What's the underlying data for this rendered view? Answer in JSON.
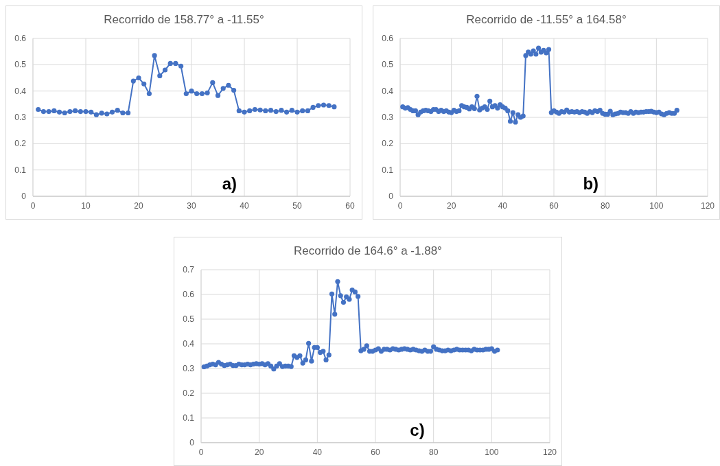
{
  "chart_data": [
    {
      "type": "line",
      "title": "Recorrido de 158.77° a -11.55°",
      "marker": "circle",
      "grid": true,
      "xlim": [
        0,
        60
      ],
      "xticks": [
        0,
        10,
        20,
        30,
        40,
        50,
        60
      ],
      "ylim": [
        0,
        0.6
      ],
      "yticks": [
        0,
        0.1,
        0.2,
        0.3,
        0.4,
        0.5,
        0.6
      ],
      "annotations": [
        "a)"
      ],
      "series": [
        {
          "color": "#4472c4",
          "x": [
            1,
            2,
            3,
            4,
            5,
            6,
            7,
            8,
            9,
            10,
            11,
            12,
            13,
            14,
            15,
            16,
            17,
            18,
            19,
            20,
            21,
            22,
            23,
            24,
            25,
            26,
            27,
            28,
            29,
            30,
            31,
            32,
            33,
            34,
            35,
            36,
            37,
            38,
            39,
            40,
            41,
            42,
            43,
            44,
            45,
            46,
            47,
            48,
            49,
            50,
            51,
            52,
            53,
            54,
            55,
            56,
            57
          ],
          "values": [
            0.33,
            0.322,
            0.322,
            0.325,
            0.32,
            0.317,
            0.322,
            0.325,
            0.322,
            0.322,
            0.32,
            0.31,
            0.316,
            0.313,
            0.32,
            0.327,
            0.317,
            0.317,
            0.438,
            0.45,
            0.427,
            0.39,
            0.535,
            0.458,
            0.48,
            0.505,
            0.505,
            0.495,
            0.39,
            0.4,
            0.39,
            0.39,
            0.393,
            0.432,
            0.383,
            0.41,
            0.422,
            0.403,
            0.325,
            0.32,
            0.325,
            0.33,
            0.328,
            0.325,
            0.327,
            0.322,
            0.327,
            0.32,
            0.327,
            0.32,
            0.325,
            0.325,
            0.338,
            0.345,
            0.347,
            0.345,
            0.34
          ]
        }
      ]
    },
    {
      "type": "line",
      "title": "Recorrido de -11.55° a 164.58°",
      "marker": "circle",
      "grid": true,
      "xlim": [
        0,
        120
      ],
      "xticks": [
        0,
        20,
        40,
        60,
        80,
        100,
        120
      ],
      "ylim": [
        0,
        0.6
      ],
      "yticks": [
        0,
        0.1,
        0.2,
        0.3,
        0.4,
        0.5,
        0.6
      ],
      "annotations": [
        "b)"
      ],
      "series": [
        {
          "color": "#4472c4",
          "x": [
            1,
            2,
            3,
            4,
            5,
            6,
            7,
            8,
            9,
            10,
            11,
            12,
            13,
            14,
            15,
            16,
            17,
            18,
            19,
            20,
            21,
            22,
            23,
            24,
            25,
            26,
            27,
            28,
            29,
            30,
            31,
            32,
            33,
            34,
            35,
            36,
            37,
            38,
            39,
            40,
            41,
            42,
            43,
            44,
            45,
            46,
            47,
            48,
            49,
            50,
            51,
            52,
            53,
            54,
            55,
            56,
            57,
            58,
            59,
            60,
            61,
            62,
            63,
            64,
            65,
            66,
            67,
            68,
            69,
            70,
            71,
            72,
            73,
            74,
            75,
            76,
            77,
            78,
            79,
            80,
            81,
            82,
            83,
            84,
            85,
            86,
            87,
            88,
            89,
            90,
            91,
            92,
            93,
            94,
            95,
            96,
            97,
            98,
            99,
            100,
            101,
            102,
            103,
            104,
            105,
            106,
            107,
            108
          ],
          "values": [
            0.34,
            0.335,
            0.337,
            0.33,
            0.325,
            0.325,
            0.31,
            0.32,
            0.325,
            0.327,
            0.325,
            0.322,
            0.33,
            0.33,
            0.322,
            0.327,
            0.322,
            0.325,
            0.32,
            0.318,
            0.327,
            0.322,
            0.325,
            0.345,
            0.34,
            0.338,
            0.332,
            0.34,
            0.333,
            0.38,
            0.328,
            0.335,
            0.34,
            0.33,
            0.362,
            0.34,
            0.345,
            0.335,
            0.348,
            0.34,
            0.335,
            0.325,
            0.285,
            0.318,
            0.282,
            0.31,
            0.3,
            0.305,
            0.535,
            0.548,
            0.54,
            0.553,
            0.54,
            0.563,
            0.548,
            0.555,
            0.545,
            0.558,
            0.318,
            0.325,
            0.32,
            0.315,
            0.322,
            0.32,
            0.328,
            0.32,
            0.322,
            0.32,
            0.322,
            0.318,
            0.322,
            0.32,
            0.315,
            0.322,
            0.318,
            0.325,
            0.322,
            0.327,
            0.315,
            0.312,
            0.312,
            0.323,
            0.31,
            0.313,
            0.315,
            0.32,
            0.318,
            0.318,
            0.315,
            0.322,
            0.315,
            0.32,
            0.318,
            0.32,
            0.32,
            0.322,
            0.322,
            0.323,
            0.32,
            0.318,
            0.32,
            0.313,
            0.31,
            0.315,
            0.318,
            0.315,
            0.315,
            0.327
          ]
        }
      ]
    },
    {
      "type": "line",
      "title": "Recorrido de 164.6° a -1.88°",
      "marker": "circle",
      "grid": true,
      "xlim": [
        0,
        120
      ],
      "xticks": [
        0,
        20,
        40,
        60,
        80,
        100,
        120
      ],
      "ylim": [
        0,
        0.7
      ],
      "yticks": [
        0,
        0.1,
        0.2,
        0.3,
        0.4,
        0.5,
        0.6,
        0.7
      ],
      "annotations": [
        "c)"
      ],
      "series": [
        {
          "color": "#4472c4",
          "x": [
            1,
            2,
            3,
            4,
            5,
            6,
            7,
            8,
            9,
            10,
            11,
            12,
            13,
            14,
            15,
            16,
            17,
            18,
            19,
            20,
            21,
            22,
            23,
            24,
            25,
            26,
            27,
            28,
            29,
            30,
            31,
            32,
            33,
            34,
            35,
            36,
            37,
            38,
            39,
            40,
            41,
            42,
            43,
            44,
            45,
            46,
            47,
            48,
            49,
            50,
            51,
            52,
            53,
            54,
            55,
            56,
            57,
            58,
            59,
            60,
            61,
            62,
            63,
            64,
            65,
            66,
            67,
            68,
            69,
            70,
            71,
            72,
            73,
            74,
            75,
            76,
            77,
            78,
            79,
            80,
            81,
            82,
            83,
            84,
            85,
            86,
            87,
            88,
            89,
            90,
            91,
            92,
            93,
            94,
            95,
            96,
            97,
            98,
            99,
            100,
            101,
            102
          ],
          "values": [
            0.307,
            0.31,
            0.315,
            0.318,
            0.315,
            0.325,
            0.318,
            0.312,
            0.315,
            0.318,
            0.312,
            0.312,
            0.318,
            0.315,
            0.315,
            0.318,
            0.315,
            0.318,
            0.32,
            0.318,
            0.32,
            0.315,
            0.32,
            0.31,
            0.298,
            0.31,
            0.32,
            0.308,
            0.31,
            0.31,
            0.308,
            0.352,
            0.345,
            0.352,
            0.322,
            0.335,
            0.402,
            0.33,
            0.385,
            0.385,
            0.365,
            0.37,
            0.335,
            0.355,
            0.602,
            0.52,
            0.652,
            0.595,
            0.568,
            0.59,
            0.58,
            0.618,
            0.61,
            0.592,
            0.372,
            0.378,
            0.392,
            0.37,
            0.37,
            0.375,
            0.38,
            0.37,
            0.378,
            0.378,
            0.375,
            0.38,
            0.378,
            0.375,
            0.378,
            0.38,
            0.378,
            0.375,
            0.378,
            0.375,
            0.372,
            0.37,
            0.375,
            0.37,
            0.37,
            0.388,
            0.378,
            0.375,
            0.372,
            0.372,
            0.375,
            0.372,
            0.375,
            0.378,
            0.375,
            0.375,
            0.375,
            0.375,
            0.372,
            0.378,
            0.375,
            0.375,
            0.375,
            0.378,
            0.378,
            0.38,
            0.37,
            0.375
          ]
        }
      ]
    }
  ]
}
